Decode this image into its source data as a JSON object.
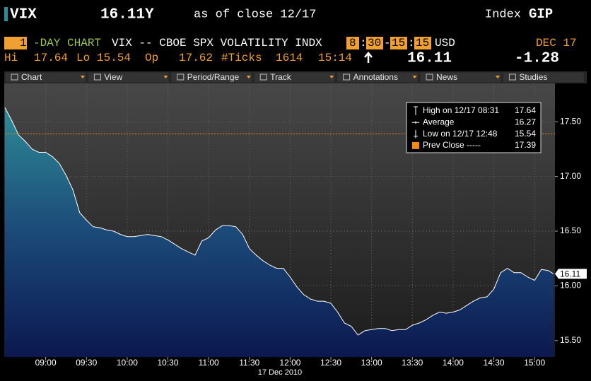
{
  "header": {
    "ticker": "VIX",
    "price": "16.11Y",
    "as_of": "as of close 12/17",
    "market": "Index",
    "function": "GIP",
    "period": 1,
    "period_label": "-DAY CHART",
    "description": "VIX -- CBOE SPX VOLATILITY INDX",
    "start_hour": 8,
    "time_sep": ":",
    "start_min": 30,
    "range_sep": "-",
    "end_hour": 15,
    "end_min": 15,
    "currency": "USD",
    "date": "DEC 17",
    "hi_label": "Hi",
    "hi": 17.64,
    "lo_label": "Lo",
    "lo": 15.54,
    "op_label": "Op",
    "op": 17.62,
    "ticks_label": "#Ticks",
    "ticks": 1614,
    "time": "15:14",
    "last": 16.11,
    "change": -1.28
  },
  "toolbar": [
    "Chart",
    "View",
    "Period/Range",
    "Track",
    "Annotations",
    "News",
    "Studies"
  ],
  "chart_data": {
    "type": "area",
    "color": "#ffffff",
    "x_label": "17 Dec 2010",
    "x": [
      "08:30",
      "08:35",
      "08:40",
      "08:45",
      "08:50",
      "08:55",
      "09:00",
      "09:05",
      "09:10",
      "09:15",
      "09:20",
      "09:25",
      "09:30",
      "09:35",
      "09:40",
      "09:45",
      "09:50",
      "09:55",
      "10:00",
      "10:05",
      "10:10",
      "10:15",
      "10:20",
      "10:25",
      "10:30",
      "10:35",
      "10:40",
      "10:45",
      "10:50",
      "10:55",
      "11:00",
      "11:05",
      "11:10",
      "11:15",
      "11:20",
      "11:25",
      "11:30",
      "11:35",
      "11:40",
      "11:45",
      "11:50",
      "11:55",
      "12:00",
      "12:05",
      "12:10",
      "12:15",
      "12:20",
      "12:25",
      "12:30",
      "12:35",
      "12:40",
      "12:45",
      "12:50",
      "12:55",
      "13:00",
      "13:05",
      "13:10",
      "13:15",
      "13:20",
      "13:25",
      "13:30",
      "13:35",
      "13:40",
      "13:45",
      "13:50",
      "13:55",
      "14:00",
      "14:05",
      "14:10",
      "14:15",
      "14:20",
      "14:25",
      "14:30",
      "14:35",
      "14:40",
      "14:45",
      "14:50",
      "14:55",
      "15:00",
      "15:05",
      "15:10",
      "15:14"
    ],
    "values": [
      17.63,
      17.51,
      17.38,
      17.32,
      17.25,
      17.22,
      17.22,
      17.18,
      17.12,
      17.01,
      16.88,
      16.67,
      16.6,
      16.54,
      16.53,
      16.51,
      16.5,
      16.47,
      16.45,
      16.45,
      16.46,
      16.47,
      16.46,
      16.45,
      16.42,
      16.38,
      16.34,
      16.31,
      16.28,
      16.41,
      16.44,
      16.51,
      16.55,
      16.55,
      16.54,
      16.47,
      16.34,
      16.28,
      16.23,
      16.19,
      16.16,
      16.16,
      16.08,
      15.99,
      15.92,
      15.88,
      15.86,
      15.86,
      15.84,
      15.76,
      15.66,
      15.63,
      15.55,
      15.59,
      15.6,
      15.61,
      15.61,
      15.59,
      15.6,
      15.6,
      15.64,
      15.66,
      15.69,
      15.73,
      15.76,
      15.75,
      15.76,
      15.78,
      15.82,
      15.86,
      15.89,
      15.9,
      15.97,
      16.12,
      16.16,
      16.12,
      16.12,
      16.08,
      16.05,
      16.15,
      16.14,
      16.11
    ],
    "xlim": [
      "08:30",
      "15:15"
    ],
    "xticks": [
      "09:00",
      "09:30",
      "10:00",
      "10:30",
      "11:00",
      "11:30",
      "12:00",
      "12:30",
      "13:00",
      "13:30",
      "14:00",
      "14:30",
      "15:00"
    ],
    "ylim": [
      15.35,
      17.85
    ],
    "yticks": [
      {
        "value": 15.5,
        "label": "15.50"
      },
      {
        "value": 16,
        "label": "16.00"
      },
      {
        "value": 16.5,
        "label": "16.50"
      },
      {
        "value": 17,
        "label": "17.00"
      },
      {
        "value": 17.5,
        "label": "17.50"
      }
    ],
    "grid": true,
    "last_price": 16.11,
    "legend": [
      {
        "label": "High on 12/17 08:31",
        "value": 17.64
      },
      {
        "label": "Average",
        "value": 16.27
      },
      {
        "label": "Low on 12/17 12:48",
        "value": 15.54
      },
      {
        "label": "Prev Close -----",
        "value": 17.39,
        "color": "#f28c00"
      }
    ]
  }
}
